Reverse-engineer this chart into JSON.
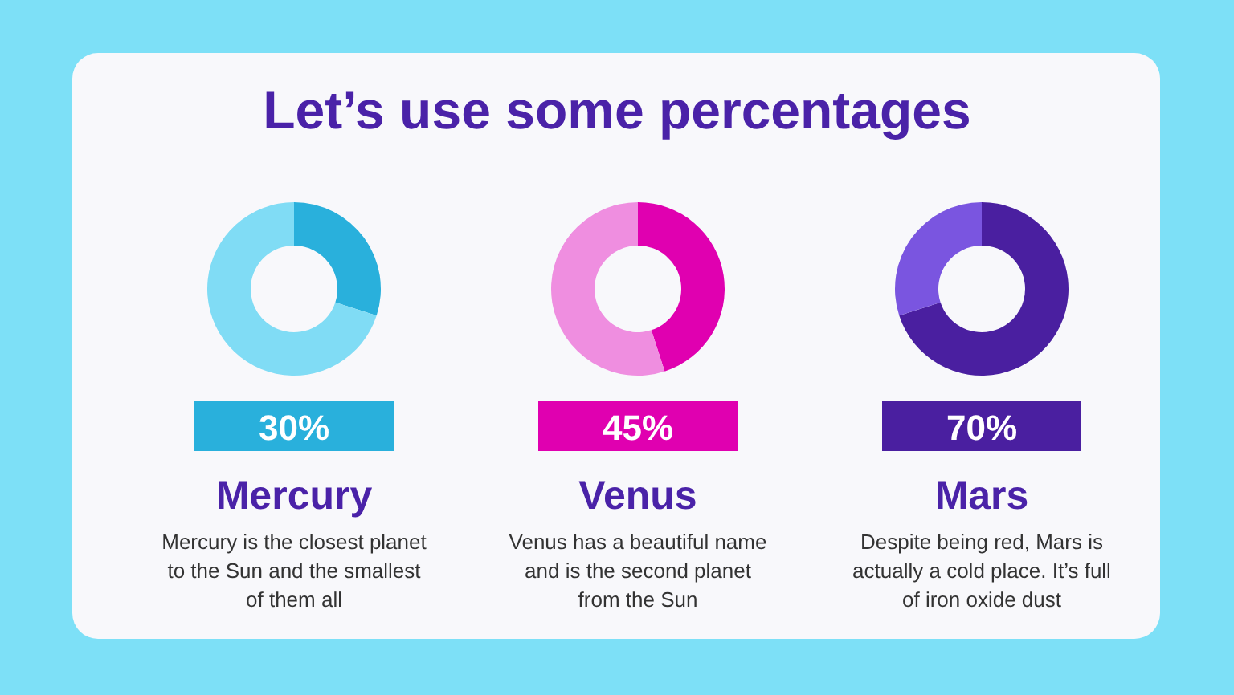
{
  "chart_data": [
    {
      "type": "donut",
      "title": "Let’s use some percentages",
      "subtitle": "Mercury",
      "categories": [
        null,
        null
      ],
      "values": [
        30,
        70
      ],
      "colors": [
        "#29b0dc",
        "#80dcf5"
      ],
      "annotations": [
        "30%",
        "Mercury is the closest planet to the Sun and the smallest of them all"
      ]
    },
    {
      "type": "donut",
      "subtitle": "Venus",
      "categories": [
        null,
        null
      ],
      "values": [
        45,
        55
      ],
      "colors": [
        "#e000b0",
        "#ef8ee0"
      ],
      "annotations": [
        "45%",
        "Venus has a beautiful name and is the second planet from the Sun"
      ]
    },
    {
      "type": "donut",
      "subtitle": "Mars",
      "categories": [
        null,
        null
      ],
      "values": [
        70,
        30
      ],
      "colors": [
        "#4a1fa0",
        "#7a55e0"
      ],
      "annotations": [
        "70%",
        "Despite being red, Mars is actually a cold place. It’s full of iron oxide dust"
      ]
    }
  ]
}
